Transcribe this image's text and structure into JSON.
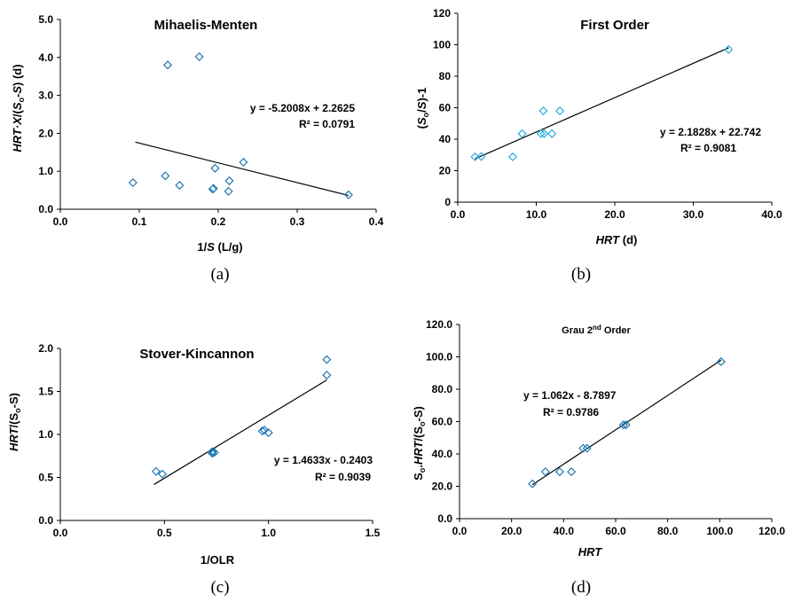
{
  "chart_data": [
    {
      "type": "scatter",
      "title": "Mihaelis-Menten",
      "xlabel": "1/S (L/g)",
      "ylabel": "HRT·X/(So-S) (d)",
      "xlim": [
        0,
        0.4
      ],
      "ylim": [
        0,
        5
      ],
      "xticks": [
        "0.0",
        "0.1",
        "0.2",
        "0.3",
        "0.4"
      ],
      "yticks": [
        "0.0",
        "1.0",
        "2.0",
        "3.0",
        "4.0",
        "5.0"
      ],
      "x": [
        0.092,
        0.133,
        0.136,
        0.151,
        0.176,
        0.193,
        0.194,
        0.196,
        0.213,
        0.214,
        0.232,
        0.365
      ],
      "y": [
        0.7,
        0.88,
        3.8,
        0.63,
        4.02,
        0.53,
        0.55,
        1.08,
        0.47,
        0.75,
        1.24,
        0.38
      ],
      "trendline": {
        "x": [
          0.095,
          0.365
        ],
        "slope": -5.2008,
        "intercept": 2.2625
      },
      "equation": "y = -5.2008x + 2.2625",
      "r2": "R² = 0.0791",
      "marker_color": "#1F78B4",
      "caption": "(a)"
    },
    {
      "type": "scatter",
      "title": "First Order",
      "xlabel": "HRT (d)",
      "ylabel": "(So/S)-1",
      "xlim": [
        0,
        40
      ],
      "ylim": [
        0,
        120
      ],
      "xticks": [
        "0.0",
        "10.0",
        "20.0",
        "30.0",
        "40.0"
      ],
      "yticks": [
        "0",
        "20",
        "40",
        "60",
        "80",
        "100",
        "120"
      ],
      "x": [
        2.2,
        3.0,
        7.0,
        8.2,
        10.6,
        10.9,
        11.0,
        12.0,
        13.0,
        34.5
      ],
      "y": [
        28.8,
        29.0,
        28.8,
        43.5,
        43.5,
        58.0,
        43.5,
        43.5,
        58.0,
        97.0
      ],
      "trendline": {
        "x": [
          2.2,
          34.5
        ],
        "slope": 2.1828,
        "intercept": 22.742
      },
      "equation": "y = 2.1828x + 22.742",
      "r2": "R² = 0.9081",
      "marker_color": "#29ABE2",
      "caption": "(b)"
    },
    {
      "type": "scatter",
      "title": "Stover-Kincannon",
      "xlabel": "1/OLR",
      "ylabel": "HRT/(So-S)",
      "xlim": [
        0,
        1.5
      ],
      "ylim": [
        0,
        2
      ],
      "xticks": [
        "0.0",
        "0.5",
        "1.0",
        "1.5"
      ],
      "yticks": [
        "0.0",
        "0.5",
        "1.0",
        "1.5",
        "2.0"
      ],
      "x": [
        0.46,
        0.49,
        0.73,
        0.73,
        0.74,
        0.97,
        0.98,
        1.0,
        1.28,
        1.28
      ],
      "y": [
        0.57,
        0.54,
        0.78,
        0.8,
        0.79,
        1.04,
        1.05,
        1.02,
        1.87,
        1.69
      ],
      "trendline": {
        "x": [
          0.45,
          1.28
        ],
        "slope": 1.4633,
        "intercept": -0.2403
      },
      "equation": "y = 1.4633x - 0.2403",
      "r2": "R² = 0.9039",
      "marker_color": "#1F78B4",
      "caption": "(c)"
    },
    {
      "type": "scatter",
      "title": "Grau 2nd Order",
      "xlabel": "HRT",
      "ylabel": "So.HRT/(So-S)",
      "xlim": [
        0,
        120
      ],
      "ylim": [
        0,
        120
      ],
      "xticks": [
        "0.0",
        "20.0",
        "40.0",
        "60.0",
        "80.0",
        "100.0",
        "120.0"
      ],
      "yticks": [
        "0.0",
        "20.0",
        "40.0",
        "60.0",
        "80.0",
        "100.0",
        "120.0"
      ],
      "x": [
        28.0,
        33.0,
        38.5,
        43.0,
        47.5,
        49.0,
        63.0,
        64.0,
        100.5
      ],
      "y": [
        21.5,
        29.0,
        29.0,
        29.0,
        43.5,
        43.5,
        58.0,
        58.0,
        97.0
      ],
      "trendline": {
        "x": [
          28.0,
          100.5
        ],
        "slope": 1.062,
        "intercept": -8.7897
      },
      "equation": "y = 1.062x - 8.7897",
      "r2": "R² = 0.9786",
      "marker_color": "#1F78B4",
      "caption": "(d)"
    }
  ]
}
